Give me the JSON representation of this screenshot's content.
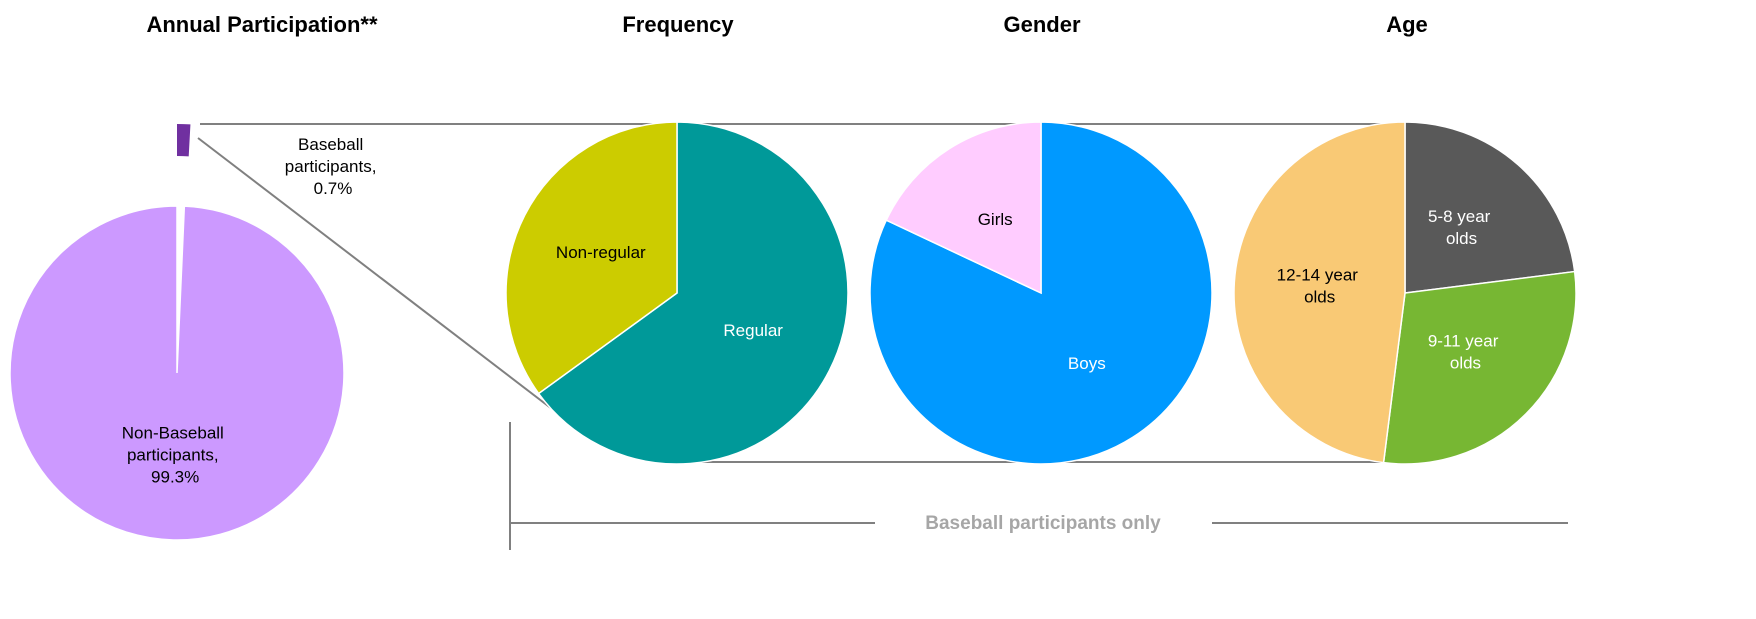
{
  "chart_data": [
    {
      "type": "pie",
      "title": "Annual Participation**",
      "values": [
        0.7,
        99.3
      ],
      "value_labels": [
        "Baseball participants, 0.7%",
        "Non-Baseball participants, 99.3%"
      ],
      "colors": [
        "#7030a0",
        "#cc99ff"
      ]
    },
    {
      "type": "pie",
      "title": "Frequency",
      "categories": [
        "Regular",
        "Non-regular"
      ],
      "values": [
        65,
        35
      ],
      "colors": [
        "#009999",
        "#cccc00"
      ]
    },
    {
      "type": "pie",
      "title": "Gender",
      "categories": [
        "Boys",
        "Girls"
      ],
      "values": [
        82,
        18
      ],
      "colors": [
        "#0099ff",
        "#ffccff"
      ]
    },
    {
      "type": "pie",
      "title": "Age",
      "categories": [
        "5-8 year olds",
        "9-11 year olds",
        "12-14 year olds"
      ],
      "values": [
        23,
        29,
        48
      ],
      "colors": [
        "#595959",
        "#77b733",
        "#f9c975"
      ]
    }
  ],
  "annotation": "Baseball participants only"
}
